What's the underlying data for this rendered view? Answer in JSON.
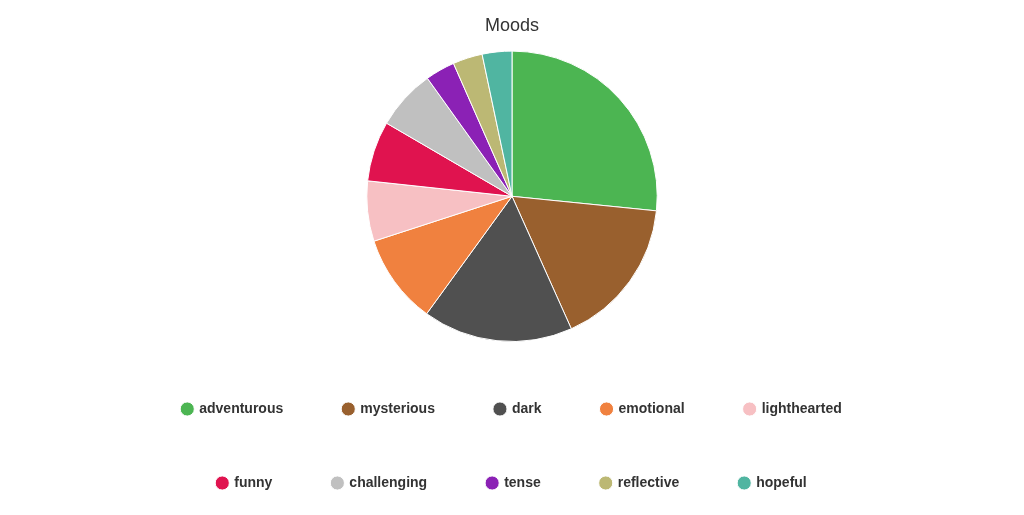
{
  "chart_data": {
    "type": "pie",
    "title": "Moods",
    "categories": [
      "adventurous",
      "mysterious",
      "dark",
      "emotional",
      "lighthearted",
      "funny",
      "challenging",
      "tense",
      "reflective",
      "hopeful"
    ],
    "values": [
      26.6,
      16.7,
      16.7,
      10,
      6.7,
      6.7,
      6.7,
      3.3,
      3.3,
      3.3
    ],
    "colors": [
      "#4cb552",
      "#99602e",
      "#505050",
      "#f0813f",
      "#f7c0c3",
      "#e0134f",
      "#c0c0c0",
      "#8b21b5",
      "#bcb874",
      "#50b5a1"
    ],
    "legend": "bottom"
  }
}
